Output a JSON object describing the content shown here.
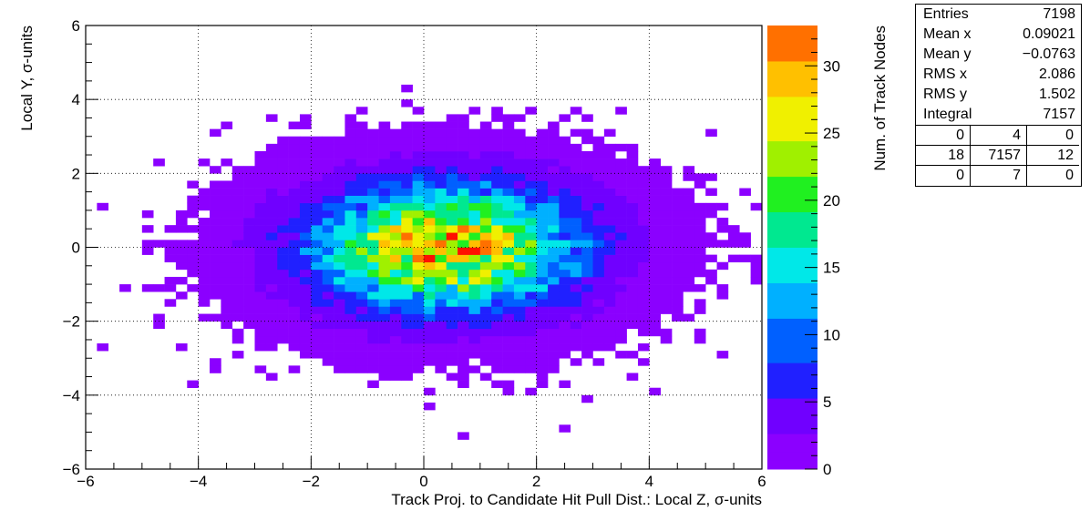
{
  "chart_data": {
    "type": "heatmap",
    "title": "",
    "xlabel": "Track Proj. to Candidate Hit Pull Dist.: Local Z, σ-units",
    "ylabel": "Local Y, σ-units",
    "zlabel": "Num. of Track Nodes",
    "xlim": [
      -6,
      6
    ],
    "ylim": [
      -6,
      6
    ],
    "zlim": [
      0,
      33
    ],
    "x_ticks": [
      "−6",
      "−4",
      "−2",
      "0",
      "2",
      "4",
      "6"
    ],
    "y_ticks": [
      "−6",
      "−4",
      "−2",
      "0",
      "2",
      "4",
      "6"
    ],
    "z_ticks": [
      "0",
      "5",
      "10",
      "15",
      "20",
      "25",
      "30"
    ],
    "bins": {
      "nx": 60,
      "ny": 60
    },
    "grid": true,
    "palette": [
      "#8B00FF",
      "#7000FF",
      "#2020FF",
      "#0060FF",
      "#00B0FF",
      "#00E8E8",
      "#00E890",
      "#20F020",
      "#A0F000",
      "#F0F000",
      "#FFC000",
      "#FF7000",
      "#FF1000"
    ],
    "distribution": {
      "model": "2D Gaussian core with sparse tails",
      "peak_count": 33,
      "peak_location": [
        0.4,
        0.0
      ],
      "sigma_x": 2.086,
      "sigma_y": 1.502
    }
  },
  "stats_box": {
    "rows": [
      {
        "label": "Entries",
        "value": "7198"
      },
      {
        "label": "Mean x",
        "value": "0.09021"
      },
      {
        "label": "Mean y",
        "value": "−0.0763"
      },
      {
        "label": "RMS x",
        "value": "2.086"
      },
      {
        "label": "RMS y",
        "value": "1.502"
      },
      {
        "label": "Integral",
        "value": "7157"
      }
    ],
    "grid": [
      [
        "0",
        "4",
        "0"
      ],
      [
        "18",
        "7157",
        "12"
      ],
      [
        "0",
        "7",
        "0"
      ]
    ]
  }
}
